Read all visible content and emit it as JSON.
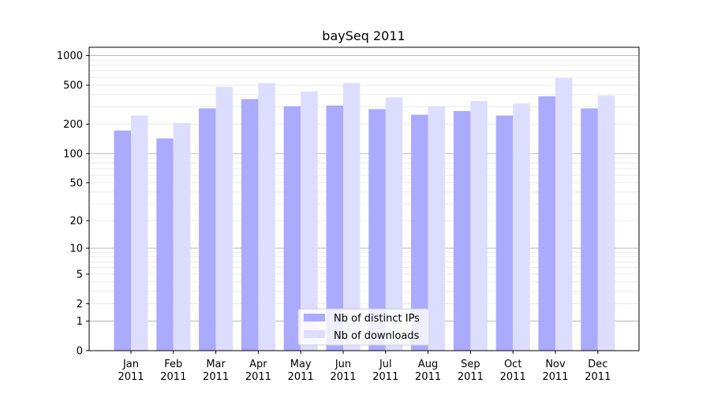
{
  "chart_data": {
    "type": "bar",
    "title": "baySeq 2011",
    "xlabel": "",
    "ylabel": "",
    "y_scale": "log(1+y)",
    "ylim": [
      0,
      1000
    ],
    "y_ticks": [
      0,
      1,
      2,
      5,
      10,
      20,
      50,
      100,
      200,
      500,
      1000
    ],
    "grid": true,
    "legend_position": "bottom-center",
    "categories": [
      [
        "Jan",
        "2011"
      ],
      [
        "Feb",
        "2011"
      ],
      [
        "Mar",
        "2011"
      ],
      [
        "Apr",
        "2011"
      ],
      [
        "May",
        "2011"
      ],
      [
        "Jun",
        "2011"
      ],
      [
        "Jul",
        "2011"
      ],
      [
        "Aug",
        "2011"
      ],
      [
        "Sep",
        "2011"
      ],
      [
        "Oct",
        "2011"
      ],
      [
        "Nov",
        "2011"
      ],
      [
        "Dec",
        "2011"
      ]
    ],
    "series": [
      {
        "name": "Nb of distinct IPs",
        "color": "#aaaaff",
        "values": [
          172,
          143,
          290,
          360,
          305,
          310,
          285,
          250,
          272,
          245,
          385,
          290
        ]
      },
      {
        "name": "Nb of downloads",
        "color": "#ddddff",
        "values": [
          245,
          205,
          480,
          525,
          430,
          525,
          375,
          305,
          345,
          325,
          590,
          390
        ]
      }
    ]
  }
}
